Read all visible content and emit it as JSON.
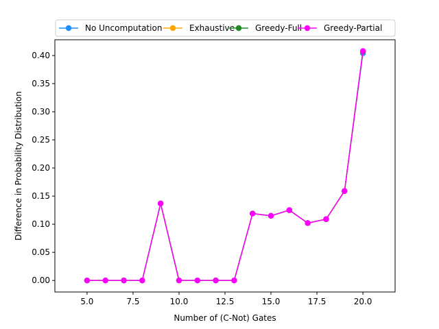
{
  "chart_data": {
    "type": "line",
    "title": "",
    "xlabel": "Number of (C-Not) Gates",
    "ylabel": "Difference in Probability Distribution",
    "xlim": [
      3.25,
      21.75
    ],
    "ylim": [
      -0.0205,
      0.428
    ],
    "xticks": [
      5.0,
      7.5,
      10.0,
      12.5,
      15.0,
      17.5,
      20.0
    ],
    "xtick_labels": [
      "5.0",
      "7.5",
      "10.0",
      "12.5",
      "15.0",
      "17.5",
      "20.0"
    ],
    "yticks": [
      0.0,
      0.05,
      0.1,
      0.15,
      0.2,
      0.25,
      0.3,
      0.35,
      0.4
    ],
    "ytick_labels": [
      "0.00",
      "0.05",
      "0.10",
      "0.15",
      "0.20",
      "0.25",
      "0.30",
      "0.35",
      "0.40"
    ],
    "grid": false,
    "legend_position": "top, above plot, 4 columns",
    "x": [
      5,
      6,
      7,
      8,
      9,
      10,
      11,
      12,
      13,
      14,
      15,
      16,
      17,
      18,
      19,
      20
    ],
    "series": [
      {
        "name": "No Uncomputation",
        "color": "#1e90ff",
        "marker": "circle",
        "values": [
          0.0,
          0.0,
          0.0,
          0.0,
          0.137,
          0.0,
          0.0,
          0.0,
          0.0,
          0.119,
          0.115,
          0.125,
          0.102,
          0.109,
          0.159,
          0.404
        ]
      },
      {
        "name": "Exhaustive",
        "color": "#ffa500",
        "marker": "circle",
        "values": [
          0.0,
          0.0,
          0.0,
          0.0,
          0.137,
          0.0,
          0.0,
          0.0,
          0.0,
          0.119,
          0.115,
          0.125,
          0.102,
          0.109,
          0.159,
          0.407
        ]
      },
      {
        "name": "Greedy-Full",
        "color": "#228b22",
        "marker": "circle",
        "values": [
          0.0,
          0.0,
          0.0,
          0.0,
          0.137,
          0.0,
          0.0,
          0.0,
          0.0,
          0.119,
          0.115,
          0.125,
          0.102,
          0.109,
          0.159,
          0.407
        ]
      },
      {
        "name": "Greedy-Partial",
        "color": "#ff00ff",
        "marker": "circle",
        "values": [
          0.0,
          0.0,
          0.0,
          0.0,
          0.137,
          0.0,
          0.0,
          0.0,
          0.0,
          0.119,
          0.115,
          0.125,
          0.102,
          0.109,
          0.159,
          0.408
        ]
      }
    ]
  }
}
